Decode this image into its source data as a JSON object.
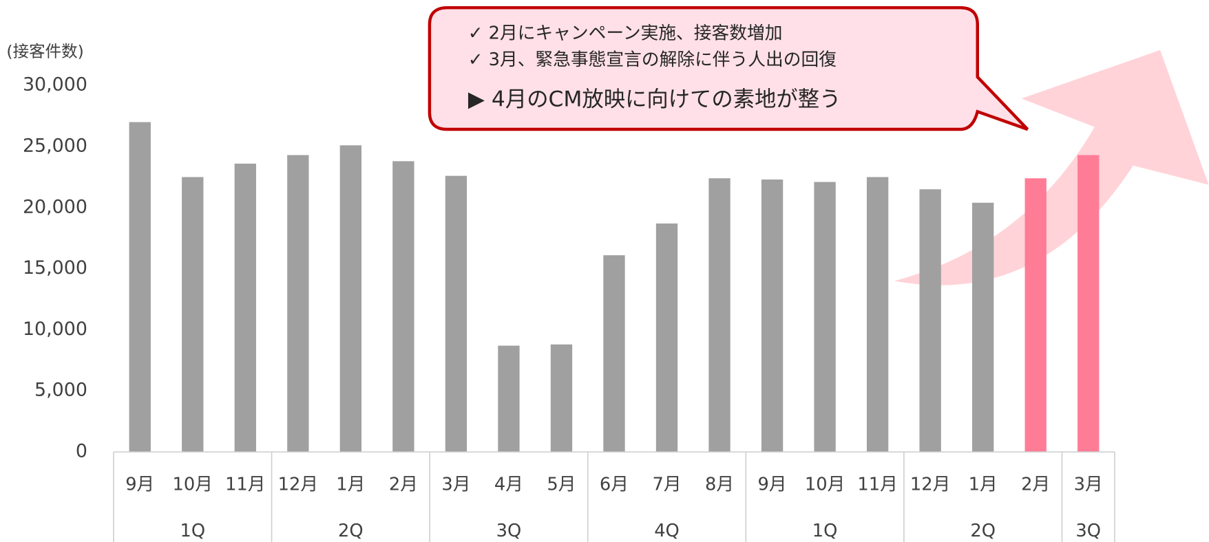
{
  "chart_data": {
    "type": "bar",
    "y_axis_label": "(接客件数)",
    "categories": [
      "9月",
      "10月",
      "11月",
      "12月",
      "1月",
      "2月",
      "3月",
      "4月",
      "5月",
      "6月",
      "7月",
      "8月",
      "9月",
      "10月",
      "11月",
      "12月",
      "1月",
      "2月",
      "3月"
    ],
    "quarters": [
      "1Q",
      null,
      null,
      "2Q",
      null,
      null,
      "3Q",
      null,
      null,
      "4Q",
      null,
      null,
      "1Q",
      null,
      null,
      "2Q",
      null,
      null,
      "3Q"
    ],
    "values": [
      27000,
      22500,
      23600,
      24300,
      25100,
      23800,
      22600,
      8700,
      8800,
      16100,
      18700,
      22400,
      22300,
      22100,
      22500,
      21500,
      20400,
      22400,
      24300
    ],
    "colors": [
      "#a0a0a0",
      "#a0a0a0",
      "#a0a0a0",
      "#a0a0a0",
      "#a0a0a0",
      "#a0a0a0",
      "#a0a0a0",
      "#a0a0a0",
      "#a0a0a0",
      "#a0a0a0",
      "#a0a0a0",
      "#a0a0a0",
      "#a0a0a0",
      "#a0a0a0",
      "#a0a0a0",
      "#a0a0a0",
      "#a0a0a0",
      "#ff7c96",
      "#ff7c96"
    ],
    "ylim": [
      0,
      30000
    ],
    "yticks": [
      0,
      {
        "value": 5000,
        "label": "5,000"
      },
      {
        "value": 10000,
        "label": "10,000"
      },
      {
        "value": 15000,
        "label": "15,000"
      },
      {
        "value": 20000,
        "label": "20,000"
      },
      {
        "value": 25000,
        "label": "25,000"
      },
      {
        "value": 30000,
        "label": "30,000"
      }
    ],
    "annotations": [
      "✓ 2月にキャンペーン実施、接客数増加",
      "✓ 3月、緊急事態宣言の解除に伴う人出の回復",
      "▶ 4月のCM放映に向けての素地が整う"
    ]
  }
}
